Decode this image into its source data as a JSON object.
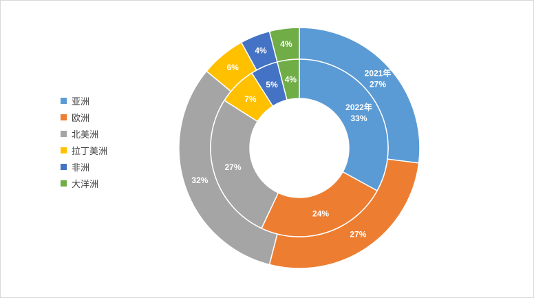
{
  "chart_data": {
    "type": "doughnut",
    "categories": [
      "亚洲",
      "欧洲",
      "北美洲",
      "拉丁美洲",
      "非洲",
      "大洋洲"
    ],
    "colors": [
      "#5B9BD5",
      "#ED7D31",
      "#A5A5A5",
      "#FFC000",
      "#4472C4",
      "#70AD47"
    ],
    "series": [
      {
        "name": "2021年",
        "ring": "outer",
        "values": [
          27,
          27,
          32,
          6,
          4,
          4
        ],
        "labels": [
          "2021年\n27%",
          "27%",
          "32%",
          "6%",
          "4%",
          "4%"
        ]
      },
      {
        "name": "2022年",
        "ring": "inner",
        "values": [
          33,
          24,
          27,
          7,
          5,
          4
        ],
        "labels": [
          "2022年\n33%",
          "24%",
          "27%",
          "7%",
          "5%",
          "4%"
        ]
      }
    ],
    "legend_position": "left"
  }
}
